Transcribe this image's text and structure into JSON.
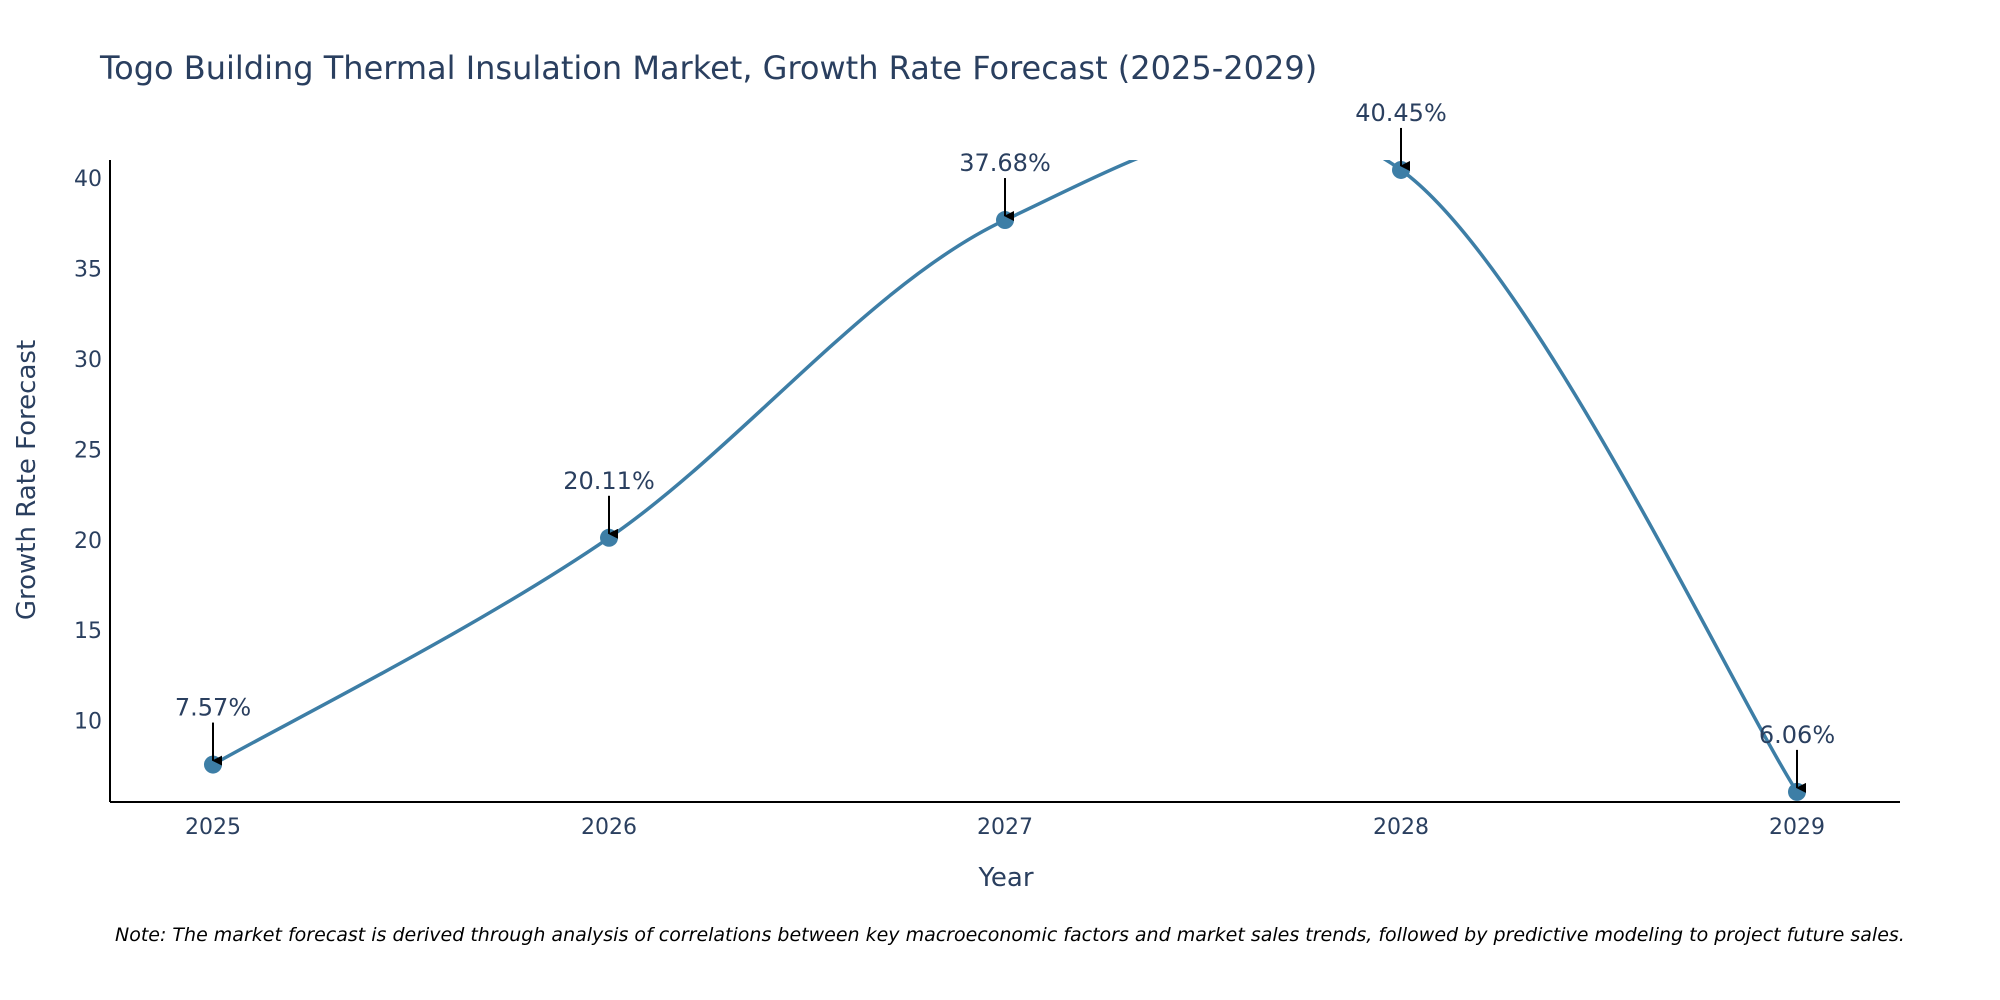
{
  "chart_data": {
    "type": "line",
    "title": "Togo Building Thermal Insulation Market, Growth Rate Forecast (2025-2029)",
    "xlabel": "Year",
    "ylabel": "Growth Rate Forecast",
    "categories": [
      "2025",
      "2026",
      "2027",
      "2028",
      "2029"
    ],
    "series": [
      {
        "name": "Growth Rate Forecast",
        "values": [
          7.57,
          20.11,
          37.68,
          40.45,
          6.06
        ],
        "labels": [
          "7.57%",
          "20.11%",
          "37.68%",
          "40.45%",
          "6.06%"
        ]
      }
    ],
    "yticks": [
      "10",
      "15",
      "20",
      "25",
      "30",
      "35",
      "40"
    ],
    "ylim": [
      5.5,
      41
    ],
    "line_color": "#3d7ea6",
    "marker_color": "#3d7ea6",
    "grid": false,
    "note": "Note: The market forecast is derived through analysis of correlations between key macroeconomic factors and market sales trends, followed by predictive modeling to project future sales."
  }
}
